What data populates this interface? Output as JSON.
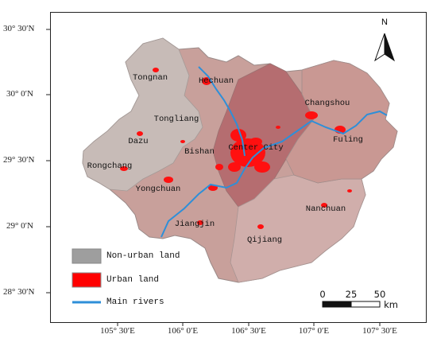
{
  "map": {
    "lat_labels": [
      "30° 30′N",
      "30° 0′N",
      "29° 30′N",
      "29° 0′N",
      "28° 30′N"
    ],
    "lon_labels": [
      "105° 30′E",
      "106° 0′E",
      "106° 30′E",
      "107° 0′E",
      "107° 30′E"
    ],
    "places": {
      "tongnan": "Tongnan",
      "hechuan": "Hechuan",
      "changshou": "Changshou",
      "tongliang": "Tongliang",
      "dazu": "Dazu",
      "bishan": "Bishan",
      "center_city": "Center City",
      "fuling": "Fuling",
      "rongchang": "Rongchang",
      "yongchuan": "Yongchuan",
      "jiangjin": "Jiangjin",
      "nanchuan": "Nanchuan",
      "qijiang": "Qijiang"
    },
    "legend": {
      "non_urban": "Non-urban land",
      "urban": "Urban land",
      "rivers": "Main rivers"
    },
    "scale": {
      "ticks": [
        "0",
        "25",
        "50"
      ],
      "unit": "km"
    },
    "north": "N",
    "colors": {
      "non_urban": "#9e9e9e",
      "urban": "#ff0000",
      "river": "#2e8fd8",
      "western_districts": "#c4b7b3",
      "middle_districts": "#c99a94",
      "center_belt": "#b7646a",
      "southern_districts": "#c89c98"
    }
  }
}
